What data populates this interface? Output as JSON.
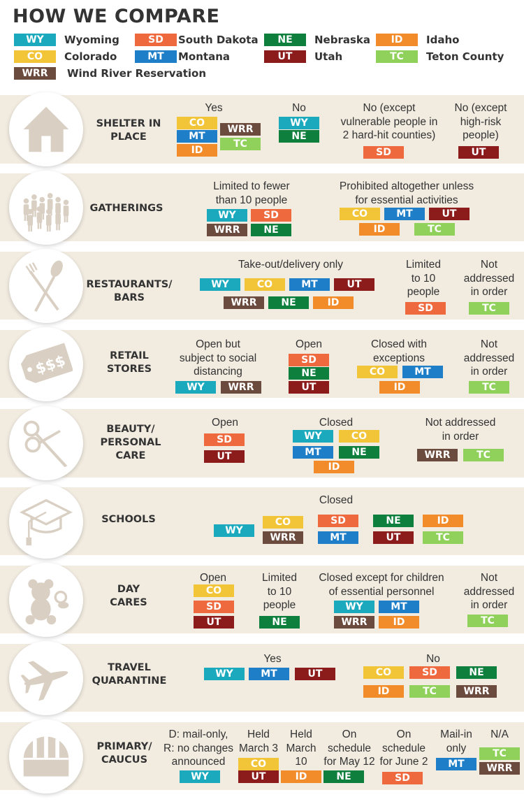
{
  "title": "HOW WE COMPARE",
  "legend": [
    {
      "abbr": "WY",
      "name": "Wyoming"
    },
    {
      "abbr": "SD",
      "name": "South Dakota"
    },
    {
      "abbr": "NE",
      "name": "Nebraska"
    },
    {
      "abbr": "ID",
      "name": "Idaho"
    },
    {
      "abbr": "CO",
      "name": "Colorado"
    },
    {
      "abbr": "MT",
      "name": "Montana"
    },
    {
      "abbr": "UT",
      "name": "Utah"
    },
    {
      "abbr": "TC",
      "name": "Teton County"
    },
    {
      "abbr": "WRR",
      "name": "Wind River Reservation"
    }
  ],
  "colors": {
    "WY": "#1aa9bd",
    "SD": "#ee6a3e",
    "NE": "#0f7f3d",
    "ID": "#f28c2b",
    "CO": "#f2c437",
    "MT": "#1e7ec8",
    "UT": "#8c1b1b",
    "TC": "#8fd15b",
    "WRR": "#6b4b3e",
    "row_bg": "#f1ebe0",
    "icon": "#d9cfc2"
  },
  "rows": [
    {
      "category": "SHELTER IN\nPLACE",
      "icon": "house-icon",
      "groups": [
        {
          "label": "Yes",
          "items": [
            "CO",
            "WRR",
            "MT",
            "TC",
            "ID"
          ]
        },
        {
          "label": "No",
          "items": [
            "WY",
            "NE"
          ]
        },
        {
          "label": "No (except\nvulnerable people in\n2 hard-hit counties)",
          "items": [
            "SD"
          ]
        },
        {
          "label": "No (except\nhigh-risk\npeople)",
          "items": [
            "UT"
          ]
        }
      ]
    },
    {
      "category": "GATHERINGS",
      "icon": "crowd-icon",
      "groups": [
        {
          "label": "Limited to fewer\nthan 10 people",
          "items": [
            "WY",
            "SD",
            "WRR",
            "NE"
          ]
        },
        {
          "label": "Prohibited altogether unless\nfor essential activities",
          "items": [
            "CO",
            "MT",
            "UT",
            "ID",
            "TC"
          ]
        }
      ]
    },
    {
      "category": "RESTAURANTS/\nBARS",
      "icon": "fork-spoon-icon",
      "groups": [
        {
          "label": "Take-out/delivery only",
          "items": [
            "WY",
            "CO",
            "MT",
            "UT",
            "WRR",
            "NE",
            "ID"
          ]
        },
        {
          "label": "Limited\nto 10\npeople",
          "items": [
            "SD"
          ]
        },
        {
          "label": "Not\naddressed\nin order",
          "items": [
            "TC"
          ]
        }
      ]
    },
    {
      "category": "RETAIL\nSTORES",
      "icon": "price-tag-icon",
      "groups": [
        {
          "label": "Open but\nsubject to social\ndistancing",
          "items": [
            "WY",
            "WRR"
          ]
        },
        {
          "label": "Open",
          "items": [
            "SD",
            "NE",
            "UT"
          ]
        },
        {
          "label": "Closed with\nexceptions",
          "items": [
            "CO",
            "MT",
            "ID"
          ]
        },
        {
          "label": "Not\naddressed\nin order",
          "items": [
            "TC"
          ]
        }
      ]
    },
    {
      "category": "BEAUTY/\nPERSONAL\nCARE",
      "icon": "scissors-icon",
      "groups": [
        {
          "label": "Open",
          "items": [
            "SD",
            "UT"
          ]
        },
        {
          "label": "Closed",
          "items": [
            "WY",
            "CO",
            "MT",
            "NE",
            "ID"
          ]
        },
        {
          "label": "Not addressed\nin order",
          "items": [
            "WRR",
            "TC"
          ]
        }
      ]
    },
    {
      "category": "SCHOOLS",
      "icon": "graduation-cap-icon",
      "groups": [
        {
          "label": "Closed",
          "items": [
            "WY",
            "CO",
            "WRR",
            "SD",
            "MT",
            "NE",
            "UT",
            "ID",
            "TC"
          ]
        }
      ]
    },
    {
      "category": "DAY\nCARES",
      "icon": "teddy-bear-icon",
      "groups": [
        {
          "label": "Open",
          "items": [
            "CO",
            "SD",
            "UT"
          ]
        },
        {
          "label": "Limited\nto 10\npeople",
          "items": [
            "NE"
          ]
        },
        {
          "label": "Closed except for children\nof essential personnel",
          "items": [
            "WY",
            "MT",
            "WRR",
            "ID"
          ]
        },
        {
          "label": "Not\naddressed\nin order",
          "items": [
            "TC"
          ]
        }
      ]
    },
    {
      "category": "TRAVEL\nQUARANTINE",
      "icon": "airplane-icon",
      "groups": [
        {
          "label": "Yes",
          "items": [
            "WY",
            "MT",
            "UT"
          ]
        },
        {
          "label": "No",
          "items": [
            "CO",
            "SD",
            "NE",
            "ID",
            "TC",
            "WRR"
          ]
        }
      ]
    },
    {
      "category": "PRIMARY/\nCAUCUS",
      "icon": "ballot-box-icon",
      "groups": [
        {
          "label": "D: mail-only,\nR: no changes\nannounced",
          "items": [
            "WY"
          ]
        },
        {
          "label": "Held\nMarch 3",
          "items": [
            "CO",
            "UT"
          ]
        },
        {
          "label": "Held\nMarch\n10",
          "items": [
            "ID"
          ]
        },
        {
          "label": "On\nschedule\nfor May 12",
          "items": [
            "NE"
          ]
        },
        {
          "label": "On\nschedule\nfor June 2",
          "items": [
            "SD"
          ]
        },
        {
          "label": "Mail-in\nonly",
          "items": [
            "MT"
          ]
        },
        {
          "label": "N/A",
          "items": [
            "TC",
            "WRR"
          ]
        }
      ]
    }
  ]
}
